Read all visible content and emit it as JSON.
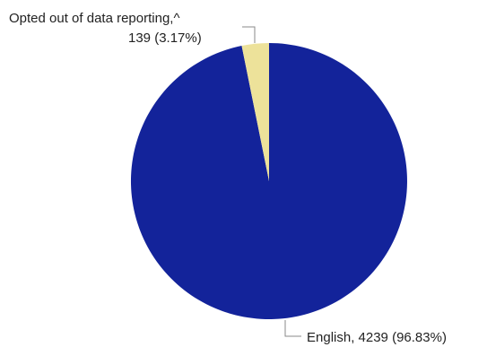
{
  "chart_data": {
    "type": "pie",
    "title": "",
    "legend": "none",
    "slices": [
      {
        "label": "English",
        "value": 4239,
        "percent": 96.83,
        "color": "#13239a",
        "label_lines": [
          "English, 4239 (96.83%)"
        ]
      },
      {
        "label": "Opted out of data reporting,^",
        "value": 139,
        "percent": 3.17,
        "color": "#ede29a",
        "label_lines": [
          "Opted out of data reporting,^",
          "139 (3.17%)"
        ]
      }
    ],
    "start": "12 o'clock",
    "direction": "clockwise"
  }
}
